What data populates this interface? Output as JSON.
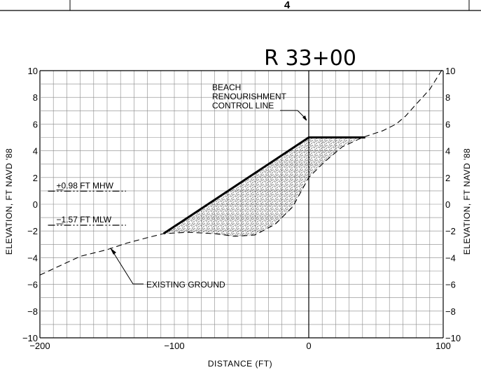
{
  "header": {
    "sheet_number": "4"
  },
  "chart_data": {
    "type": "line",
    "title": "R 33+00",
    "xlabel": "DISTANCE (FT)",
    "ylabel": "ELEVATION, FT NAVD '88",
    "ylabel_right": "ELEVATION, FT NAVD '88",
    "xlim": [
      -200,
      100
    ],
    "ylim": [
      -10,
      10
    ],
    "grid": true,
    "x_ticks": [
      -200,
      -100,
      0,
      100
    ],
    "x_tick_labels": [
      "−200",
      "−100",
      "0",
      "100"
    ],
    "y_ticks": [
      -10,
      -8,
      -6,
      -4,
      -2,
      0,
      2,
      4,
      6,
      8,
      10
    ],
    "y_tick_labels": [
      "−10",
      "−8",
      "−6",
      "−4",
      "−2",
      "0",
      "2",
      "4",
      "6",
      "8",
      "10"
    ],
    "control_line_x": 0,
    "series": [
      {
        "name": "EXISTING GROUND",
        "style": "dashed",
        "x": [
          -200,
          -185,
          -170,
          -150,
          -135,
          -120,
          -108,
          -90,
          -70,
          -55,
          -40,
          -25,
          -12,
          0,
          12,
          25,
          40,
          55,
          65,
          72,
          80,
          90,
          100
        ],
        "y": [
          -5.3,
          -4.6,
          -3.9,
          -3.4,
          -2.9,
          -2.5,
          -2.2,
          -2.1,
          -2.2,
          -2.4,
          -2.3,
          -1.5,
          -0.2,
          2.0,
          3.2,
          4.3,
          5.0,
          5.5,
          6.0,
          6.6,
          7.5,
          8.6,
          10.2
        ]
      },
      {
        "name": "",
        "style": "solid-thick",
        "x": [
          -108,
          0,
          42
        ],
        "y": [
          -2.2,
          5.0,
          5.0
        ]
      }
    ],
    "fill_region": {
      "style": "stipple",
      "x": [
        -108,
        0,
        42,
        40,
        25,
        12,
        0,
        -12,
        -25,
        -40,
        -55,
        -70,
        -90
      ],
      "y": [
        -2.2,
        5.0,
        5.0,
        5.0,
        4.3,
        3.2,
        2.0,
        -0.2,
        -1.5,
        -2.3,
        -2.4,
        -2.2,
        -2.1
      ]
    },
    "reference_levels": [
      {
        "label": "+0.98 FT MHW",
        "y": 0.98,
        "x_range": [
          -194,
          -136
        ]
      },
      {
        "label": "−1.57 FT MLW",
        "y": -1.57,
        "x_range": [
          -194,
          -136
        ]
      }
    ],
    "annotations": [
      {
        "id": "control-line",
        "lines": [
          "BEACH",
          "RENOURISHMENT",
          "CONTROL LINE"
        ]
      },
      {
        "id": "existing-ground",
        "lines": [
          "EXISTING GROUND"
        ]
      }
    ]
  }
}
